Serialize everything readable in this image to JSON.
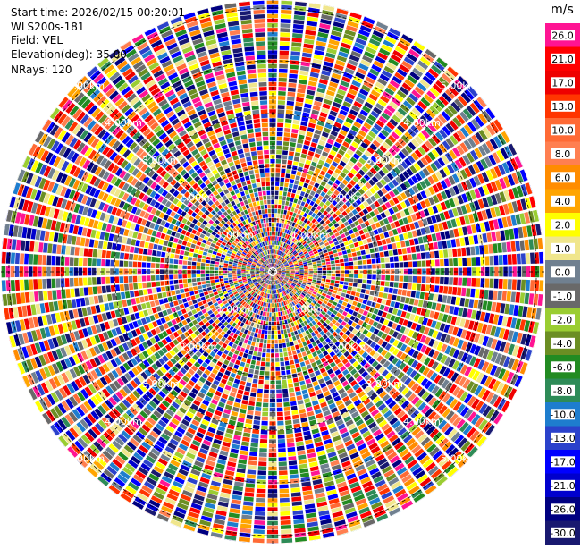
{
  "chart_data": {
    "type": "polar_ppi",
    "info": {
      "start_time": "Start time: 2026/02/15 00:20:01",
      "instrument": "WLS200s-181",
      "field": "Field: VEL",
      "elevation": "Elevation(deg): 35.00",
      "nrays": "NRays: 120"
    },
    "n_rays": 120,
    "n_gates": 60,
    "random_seed": 181,
    "ring_labels": [
      "1.00km",
      "2.00km",
      "3.00km",
      "4.00km",
      "5.00km"
    ],
    "units": "m/s",
    "colorbar": {
      "tick_labels": [
        "26.0",
        "21.0",
        "17.0",
        "13.0",
        "10.0",
        "8.0",
        "6.0",
        "4.0",
        "2.0",
        "1.0",
        "0.0",
        "-1.0",
        "-2.0",
        "-4.0",
        "-6.0",
        "-8.0",
        "-10.0",
        "-13.0",
        "-17.0",
        "-21.0",
        "-26.0",
        "-30.0"
      ],
      "colors": [
        "#ff1493",
        "#ff0000",
        "#ee0000",
        "#ff3500",
        "#ff6a35",
        "#ff7f50",
        "#ff8c00",
        "#ffa500",
        "#ffff00",
        "#f0e68c",
        "#708090",
        "#696969",
        "#9acd32",
        "#6b8e23",
        "#228b22",
        "#2e8b57",
        "#1e7dce",
        "#2b42cb",
        "#0000ff",
        "#0000cd",
        "#000080",
        "#191970"
      ]
    }
  }
}
